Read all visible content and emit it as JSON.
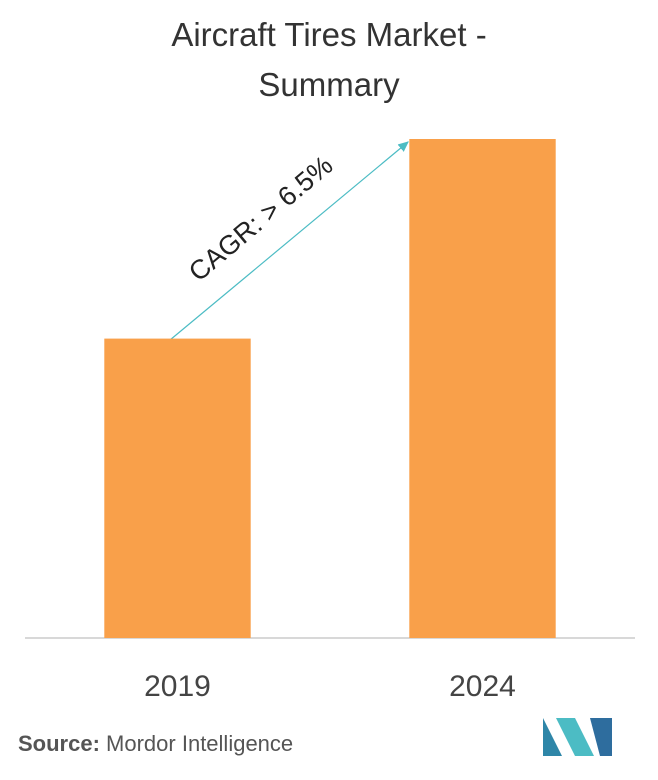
{
  "chart_data": {
    "type": "bar",
    "title": "Aircraft Tires Market - Summary",
    "categories": [
      "2019",
      "2024"
    ],
    "values": [
      60,
      100
    ],
    "color": "#f9a04a",
    "ylim": [
      0,
      100
    ],
    "annotation": "CAGR: > 6.5%",
    "source_label": "Source:",
    "source": "Mordor Intelligence"
  }
}
